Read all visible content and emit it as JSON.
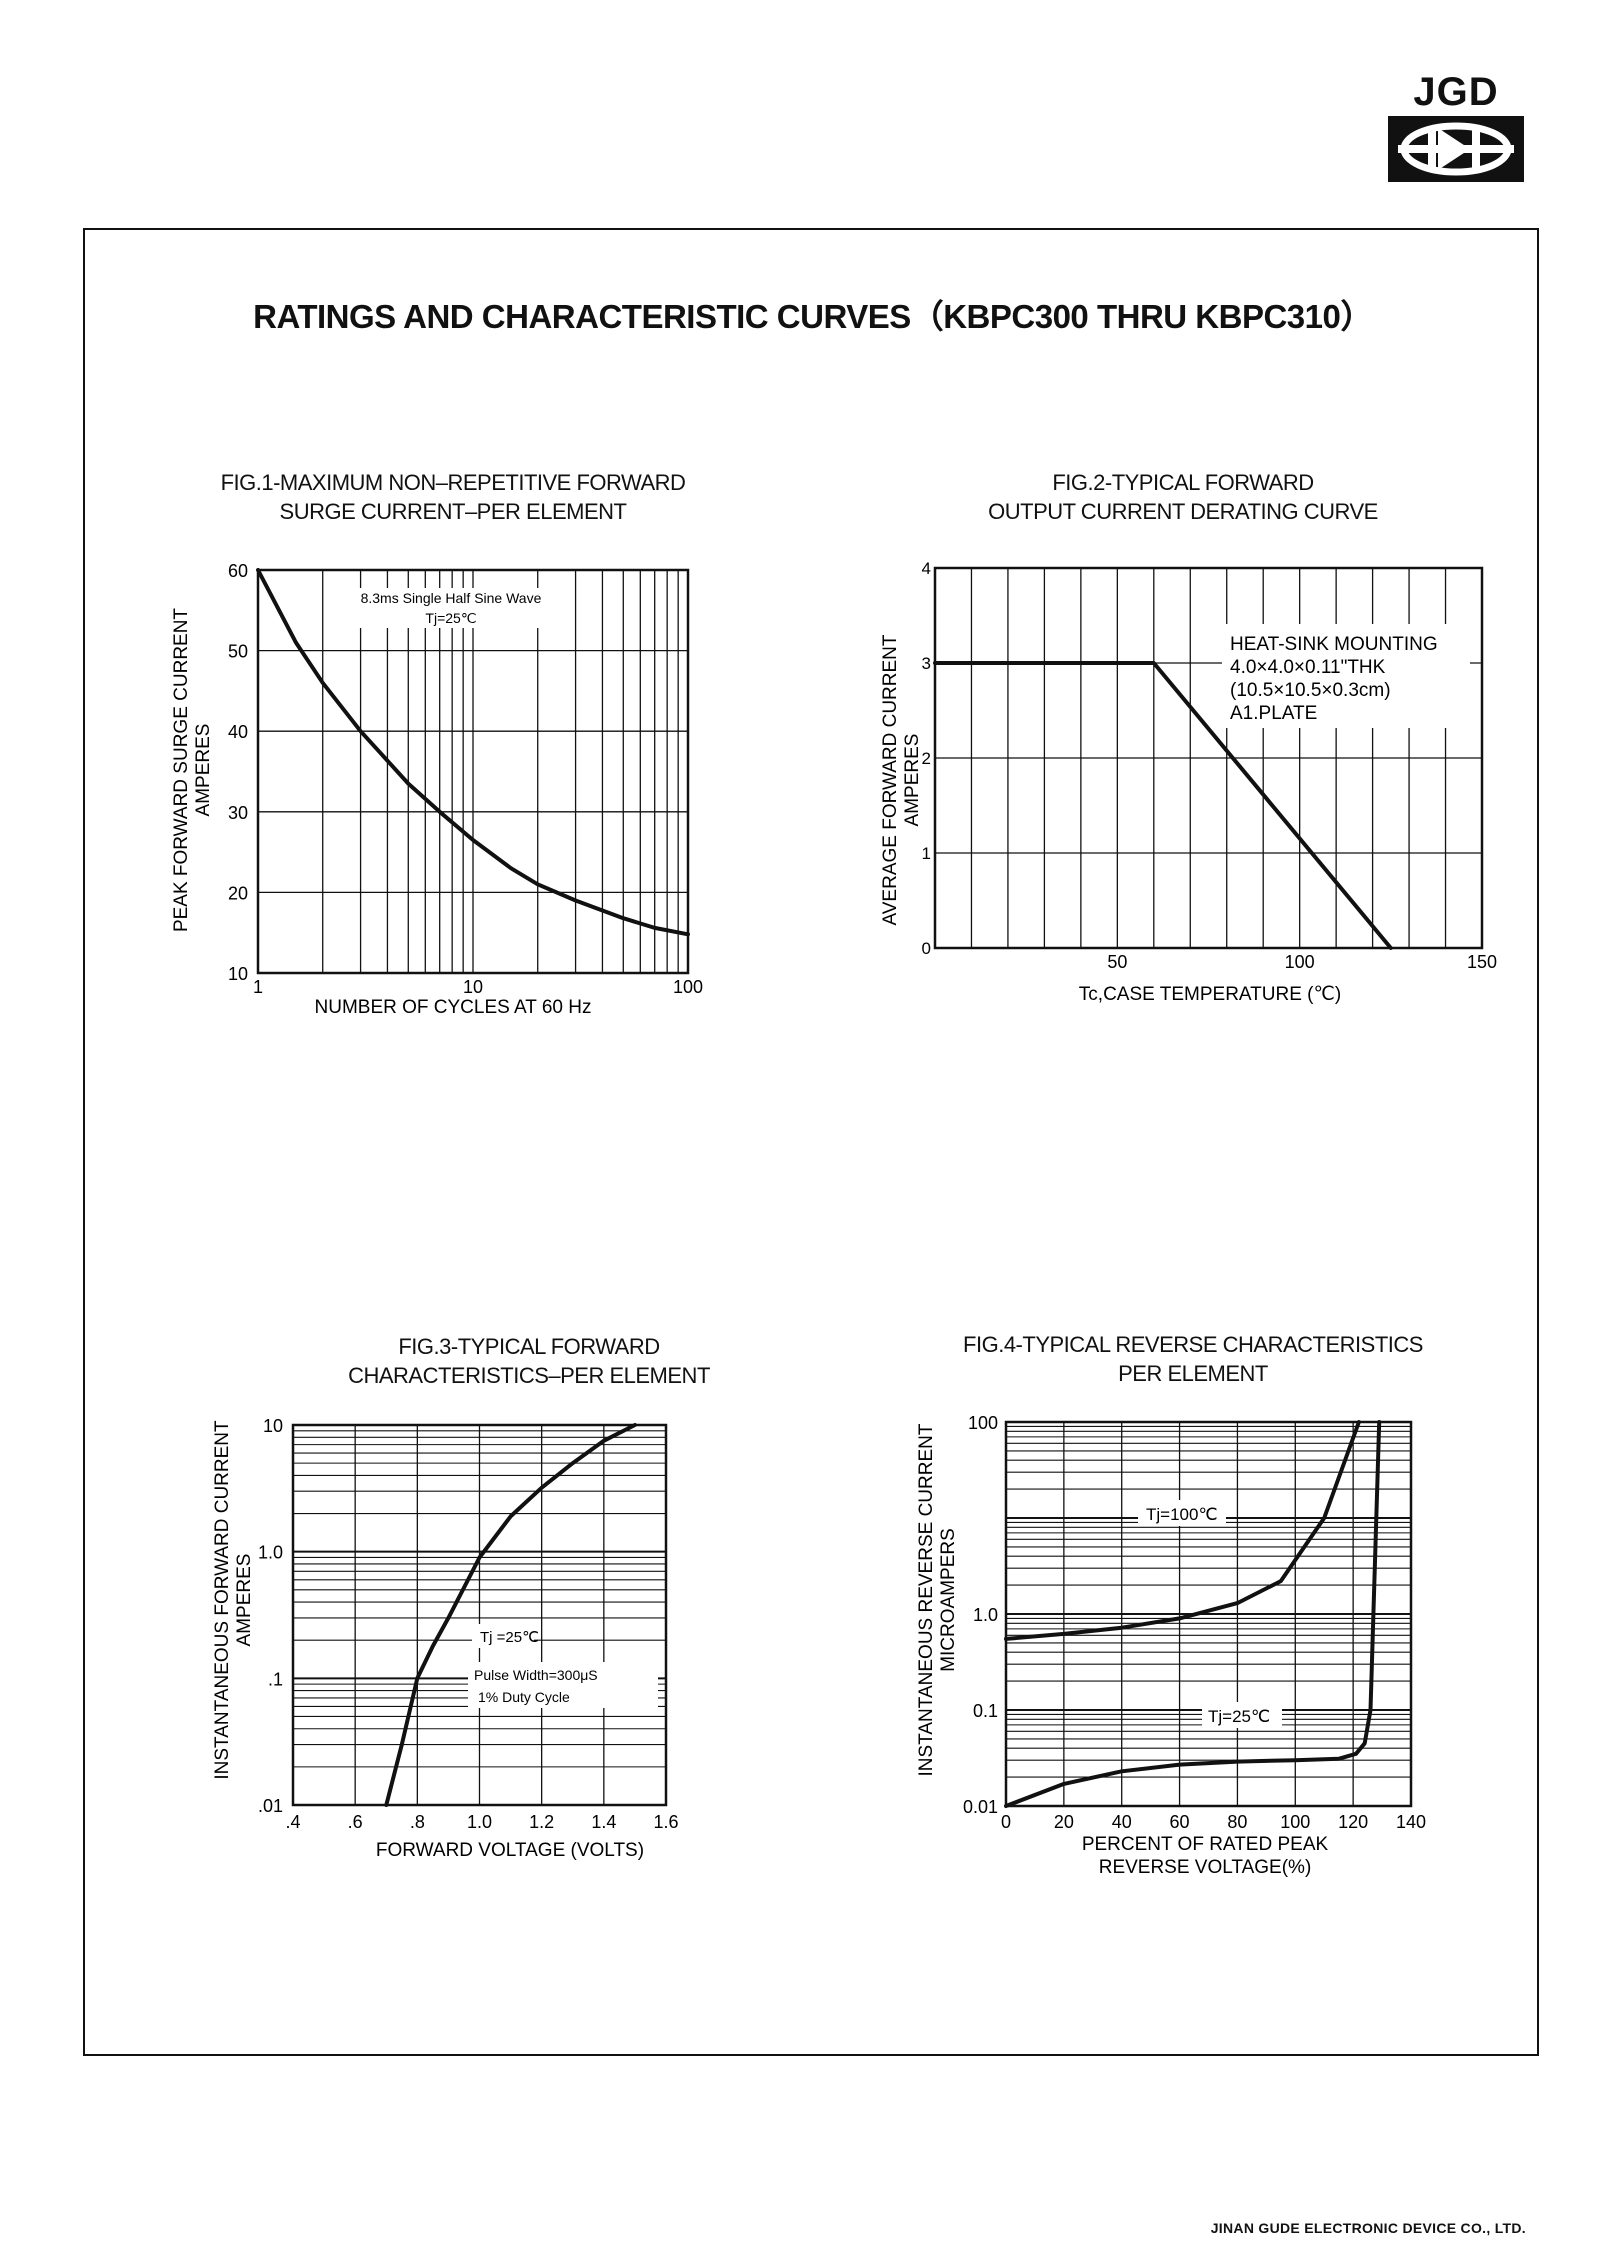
{
  "logo": {
    "text": "JGD",
    "mark_icon": "diode-symbol-icon"
  },
  "page": {
    "title": "RATINGS AND CHARACTERISTIC CURVES（KBPC300 THRU KBPC310）",
    "footer": "JINAN GUDE ELECTRONIC DEVICE CO., LTD."
  },
  "figures": {
    "fig1": {
      "title_line1": "FIG.1-MAXIMUM NON–REPETITIVE FORWARD",
      "title_line2": "SURGE CURRENT–PER ELEMENT"
    },
    "fig2": {
      "title_line1": "FIG.2-TYPICAL FORWARD",
      "title_line2": "OUTPUT CURRENT DERATING CURVE"
    },
    "fig3": {
      "title_line1": "FIG.3-TYPICAL FORWARD",
      "title_line2": "CHARACTERISTICS–PER ELEMENT"
    },
    "fig4": {
      "title_line1": "FIG.4-TYPICAL REVERSE CHARACTERISTICS",
      "title_line2": "PER ELEMENT"
    }
  },
  "chart_data": [
    {
      "id": "fig1",
      "type": "line",
      "xscale": "log",
      "xlim": [
        1,
        100
      ],
      "ylim": [
        10,
        60
      ],
      "xticks": [
        "1",
        "10",
        "100"
      ],
      "yticks": [
        "10",
        "20",
        "30",
        "40",
        "50",
        "60"
      ],
      "xlabel": "NUMBER OF CYCLES AT 60 Hz",
      "ylabel": [
        "PEAK FORWARD SURGE CURRENT",
        "AMPERES"
      ],
      "annotations": [
        "8.3ms Single Half Sine Wave",
        "Tj=25℃"
      ],
      "grid": true,
      "series": [
        {
          "x": [
            1,
            1.5,
            2,
            3,
            5,
            7,
            10,
            15,
            20,
            30,
            50,
            70,
            100
          ],
          "y": [
            60,
            51,
            46,
            40,
            33.5,
            30,
            26.5,
            23,
            21,
            19,
            16.8,
            15.6,
            14.8
          ]
        }
      ]
    },
    {
      "id": "fig2",
      "type": "line",
      "xlim": [
        0,
        150
      ],
      "ylim": [
        0,
        4
      ],
      "xticks": [
        "50",
        "100",
        "150"
      ],
      "yticks": [
        "0",
        "1",
        "2",
        "3",
        "4"
      ],
      "xlabel": "Tc,CASE  TEMPERATURE (℃)",
      "ylabel": [
        "AVERAGE FORWARD CURRENT",
        "AMPERES"
      ],
      "annotations": [
        "HEAT-SINK MOUNTING",
        "4.0×4.0×0.11\"THK",
        "(10.5×10.5×0.3cm)",
        "A1.PLATE"
      ],
      "grid": true,
      "series": [
        {
          "x": [
            0,
            60,
            125
          ],
          "y": [
            3,
            3,
            0
          ]
        }
      ]
    },
    {
      "id": "fig3",
      "type": "line",
      "yscale": "log",
      "xlim": [
        0.4,
        1.6
      ],
      "ylim": [
        0.01,
        10
      ],
      "xticks": [
        ".4",
        ".6",
        ".8",
        "1.0",
        "1.2",
        "1.4",
        "1.6"
      ],
      "yticks": [
        ".01",
        ".1",
        "1.0",
        "10"
      ],
      "xlabel": "FORWARD VOLTAGE (VOLTS)",
      "ylabel": [
        "INSTANTANEOUS FORWARD CURRENT",
        "AMPERES"
      ],
      "annotations": [
        "Tj =25℃",
        "Pulse Width=300μS",
        "1% Duty Cycle"
      ],
      "grid": true,
      "series": [
        {
          "x": [
            0.7,
            0.75,
            0.8,
            0.85,
            0.9,
            1.0,
            1.1,
            1.2,
            1.3,
            1.4,
            1.5
          ],
          "y": [
            0.01,
            0.03,
            0.1,
            0.18,
            0.3,
            0.9,
            1.9,
            3.2,
            5.0,
            7.5,
            10
          ]
        }
      ]
    },
    {
      "id": "fig4",
      "type": "line",
      "yscale": "log",
      "xlim": [
        0,
        140
      ],
      "ylim": [
        0.01,
        100
      ],
      "xticks": [
        "0",
        "20",
        "40",
        "60",
        "80",
        "100",
        "120",
        "140"
      ],
      "yticks": [
        "0.01",
        "0.1",
        "1.0",
        "100"
      ],
      "xlabel": [
        "PERCENT OF RATED PEAK",
        "REVERSE VOLTAGE(%)"
      ],
      "ylabel": [
        "INSTANTANEOUS REVERSE CURRENT",
        "MICROAMPERS"
      ],
      "annotations": [],
      "grid": true,
      "series": [
        {
          "name": "Tj=100℃",
          "x": [
            0,
            20,
            40,
            60,
            80,
            95,
            110,
            122
          ],
          "y": [
            0.55,
            0.62,
            0.72,
            0.9,
            1.3,
            2.2,
            10,
            100
          ]
        },
        {
          "name": "Tj=25℃",
          "x": [
            0,
            20,
            40,
            60,
            80,
            100,
            115,
            121,
            124,
            126,
            127,
            128,
            129
          ],
          "y": [
            0.01,
            0.017,
            0.023,
            0.027,
            0.029,
            0.03,
            0.031,
            0.035,
            0.045,
            0.1,
            1,
            10,
            100
          ]
        }
      ]
    }
  ]
}
